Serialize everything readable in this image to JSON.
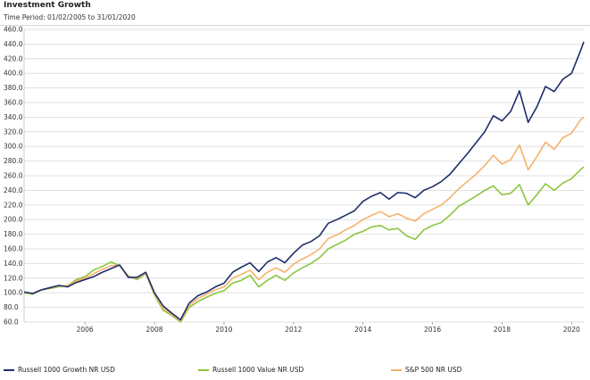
{
  "title": "Investment Growth",
  "subtitle": "Time Period: 01/02/2005 to 31/01/2020",
  "chart_data": {
    "type": "line",
    "title": "Investment Growth",
    "subtitle": "Time Period: 01/02/2005 to 31/01/2020",
    "xlabel": "",
    "ylabel": "",
    "xlim": [
      2004.25,
      2020.35
    ],
    "ylim": [
      60,
      460
    ],
    "y_ticks": [
      "460.0",
      "440.0",
      "420.0",
      "400.0",
      "380.0",
      "360.0",
      "340.0",
      "320.0",
      "300.0",
      "280.0",
      "260.0",
      "240.0",
      "220.0",
      "200.0",
      "180.0",
      "160.0",
      "140.0",
      "120.0",
      "100.0",
      "80.0",
      "60.0"
    ],
    "x_ticks": [
      "2006",
      "2008",
      "2010",
      "2012",
      "2014",
      "2016",
      "2018",
      "2020"
    ],
    "grid": "horizontal",
    "legend_position": "bottom",
    "series": [
      {
        "name": "Russell 1000 Growth NR USD",
        "color": "#1f2d6b",
        "x": [
          2004.25,
          2004.5,
          2004.75,
          2005.0,
          2005.25,
          2005.5,
          2005.75,
          2006.0,
          2006.25,
          2006.5,
          2006.75,
          2007.0,
          2007.25,
          2007.5,
          2007.75,
          2008.0,
          2008.25,
          2008.5,
          2008.75,
          2009.0,
          2009.25,
          2009.5,
          2009.75,
          2010.0,
          2010.25,
          2010.5,
          2010.75,
          2011.0,
          2011.25,
          2011.5,
          2011.75,
          2012.0,
          2012.25,
          2012.5,
          2012.75,
          2013.0,
          2013.25,
          2013.5,
          2013.75,
          2014.0,
          2014.25,
          2014.5,
          2014.75,
          2015.0,
          2015.25,
          2015.5,
          2015.75,
          2016.0,
          2016.25,
          2016.5,
          2016.75,
          2017.0,
          2017.25,
          2017.5,
          2017.75,
          2018.0,
          2018.25,
          2018.5,
          2018.75,
          2019.0,
          2019.25,
          2019.5,
          2019.75,
          2020.0,
          2020.25,
          2020.35
        ],
        "values": [
          101,
          99,
          104,
          107,
          110,
          108,
          114,
          118,
          122,
          128,
          133,
          138,
          121,
          121,
          128,
          100,
          82,
          72,
          63,
          86,
          96,
          101,
          108,
          113,
          128,
          135,
          141,
          129,
          142,
          148,
          141,
          154,
          165,
          170,
          178,
          195,
          200,
          206,
          212,
          225,
          232,
          237,
          228,
          237,
          236,
          230,
          240,
          245,
          252,
          262,
          276,
          290,
          305,
          320,
          342,
          335,
          348,
          376,
          333,
          354,
          382,
          375,
          392,
          400,
          430,
          443
        ]
      },
      {
        "name": "Russell 1000 Value NR USD",
        "color": "#8dc63f",
        "x": [
          2004.25,
          2004.5,
          2004.75,
          2005.0,
          2005.25,
          2005.5,
          2005.75,
          2006.0,
          2006.25,
          2006.5,
          2006.75,
          2007.0,
          2007.25,
          2007.5,
          2007.75,
          2008.0,
          2008.25,
          2008.5,
          2008.75,
          2009.0,
          2009.25,
          2009.5,
          2009.75,
          2010.0,
          2010.25,
          2010.5,
          2010.75,
          2011.0,
          2011.25,
          2011.5,
          2011.75,
          2012.0,
          2012.25,
          2012.5,
          2012.75,
          2013.0,
          2013.25,
          2013.5,
          2013.75,
          2014.0,
          2014.25,
          2014.5,
          2014.75,
          2015.0,
          2015.25,
          2015.5,
          2015.75,
          2016.0,
          2016.25,
          2016.5,
          2016.75,
          2017.0,
          2017.25,
          2017.5,
          2017.75,
          2018.0,
          2018.25,
          2018.5,
          2018.75,
          2019.0,
          2019.25,
          2019.5,
          2019.75,
          2020.0,
          2020.25,
          2020.35
        ],
        "values": [
          100,
          98,
          104,
          106,
          108,
          110,
          118,
          122,
          131,
          136,
          142,
          137,
          123,
          118,
          126,
          97,
          76,
          69,
          60,
          80,
          88,
          94,
          99,
          103,
          113,
          117,
          124,
          108,
          117,
          124,
          117,
          127,
          134,
          140,
          148,
          160,
          166,
          172,
          180,
          184,
          190,
          192,
          186,
          188,
          178,
          173,
          186,
          192,
          196,
          206,
          218,
          225,
          232,
          240,
          246,
          234,
          236,
          248,
          220,
          234,
          249,
          240,
          250,
          256,
          268,
          272
        ]
      },
      {
        "name": "S&P 500 NR USD",
        "color": "#f5b26b",
        "x": [
          2004.25,
          2004.5,
          2004.75,
          2005.0,
          2005.25,
          2005.5,
          2005.75,
          2006.0,
          2006.25,
          2006.5,
          2006.75,
          2007.0,
          2007.25,
          2007.5,
          2007.75,
          2008.0,
          2008.25,
          2008.5,
          2008.75,
          2009.0,
          2009.25,
          2009.5,
          2009.75,
          2010.0,
          2010.25,
          2010.5,
          2010.75,
          2011.0,
          2011.25,
          2011.5,
          2011.75,
          2012.0,
          2012.25,
          2012.5,
          2012.75,
          2013.0,
          2013.25,
          2013.5,
          2013.75,
          2014.0,
          2014.25,
          2014.5,
          2014.75,
          2015.0,
          2015.25,
          2015.5,
          2015.75,
          2016.0,
          2016.25,
          2016.5,
          2016.75,
          2017.0,
          2017.25,
          2017.5,
          2017.75,
          2018.0,
          2018.25,
          2018.5,
          2018.75,
          2019.0,
          2019.25,
          2019.5,
          2019.75,
          2020.0,
          2020.25,
          2020.35
        ],
        "values": [
          101,
          99,
          104,
          107,
          109,
          110,
          116,
          120,
          126,
          132,
          137,
          137,
          122,
          120,
          127,
          98,
          79,
          70,
          62,
          83,
          92,
          98,
          104,
          108,
          120,
          125,
          131,
          118,
          128,
          134,
          128,
          139,
          146,
          152,
          160,
          174,
          179,
          186,
          192,
          200,
          206,
          211,
          204,
          208,
          202,
          198,
          208,
          214,
          220,
          230,
          242,
          252,
          262,
          274,
          288,
          276,
          282,
          302,
          268,
          286,
          306,
          296,
          312,
          318,
          336,
          340
        ]
      }
    ]
  }
}
